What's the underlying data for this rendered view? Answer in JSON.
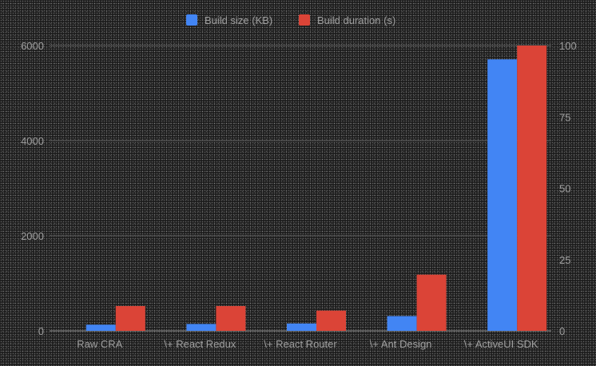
{
  "chart_data": {
    "type": "bar",
    "categories": [
      "Raw CRA",
      "\\+ React Redux",
      "\\+ React Router",
      "\\+ Ant Design",
      "\\+ ActiveUI SDK"
    ],
    "series": [
      {
        "name": "Build size (KB)",
        "axis": "left",
        "color": "#4285f4",
        "values": [
          130,
          145,
          155,
          310,
          5710
        ]
      },
      {
        "name": "Build duration (s)",
        "axis": "right",
        "color": "#db4437",
        "values": [
          8.7,
          8.7,
          7.1,
          19.7,
          100
        ]
      }
    ],
    "y_left": {
      "min": 0,
      "max": 6000,
      "ticks": [
        0,
        2000,
        4000,
        6000
      ]
    },
    "y_right": {
      "min": 0,
      "max": 100,
      "ticks": [
        0,
        25,
        50,
        75,
        100
      ]
    },
    "grid": true,
    "legend_position": "top-center"
  }
}
